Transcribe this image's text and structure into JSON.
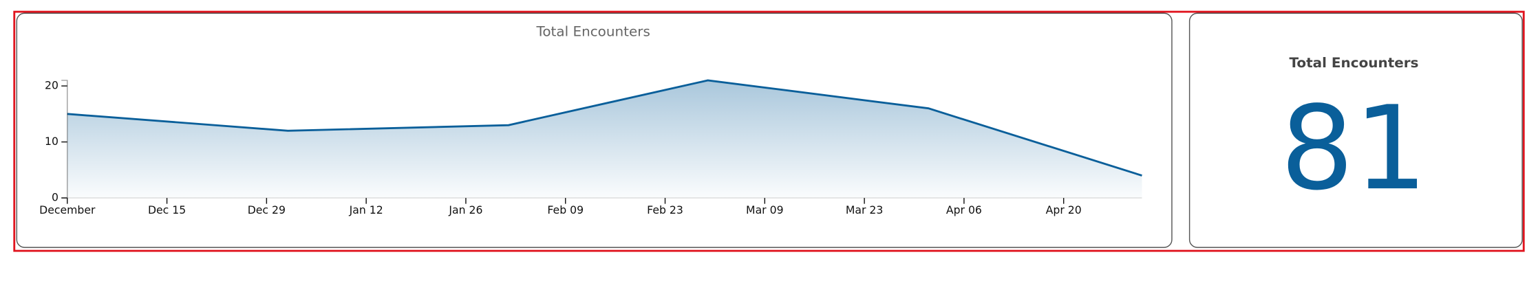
{
  "chart_data": {
    "type": "line",
    "title": "Total Encounters",
    "x": [
      0,
      31,
      62,
      90,
      121,
      151
    ],
    "values": [
      15,
      12,
      13,
      21,
      16,
      4
    ],
    "color": "#0a5f9a",
    "xlim": [
      0,
      151
    ],
    "xticks": [
      {
        "value": 0,
        "label": "December"
      },
      {
        "value": 14,
        "label": "Dec 15"
      },
      {
        "value": 28,
        "label": "Dec 29"
      },
      {
        "value": 42,
        "label": "Jan 12"
      },
      {
        "value": 56,
        "label": "Jan 26"
      },
      {
        "value": 70,
        "label": "Feb 09"
      },
      {
        "value": 84,
        "label": "Feb 23"
      },
      {
        "value": 98,
        "label": "Mar 09"
      },
      {
        "value": 112,
        "label": "Mar 23"
      },
      {
        "value": 126,
        "label": "Apr 06"
      },
      {
        "value": 140,
        "label": "Apr 20"
      }
    ],
    "ylim": [
      0,
      21
    ],
    "yticks": [
      0,
      10,
      20
    ]
  },
  "kpi": {
    "title": "Total Encounters",
    "value": 81
  }
}
